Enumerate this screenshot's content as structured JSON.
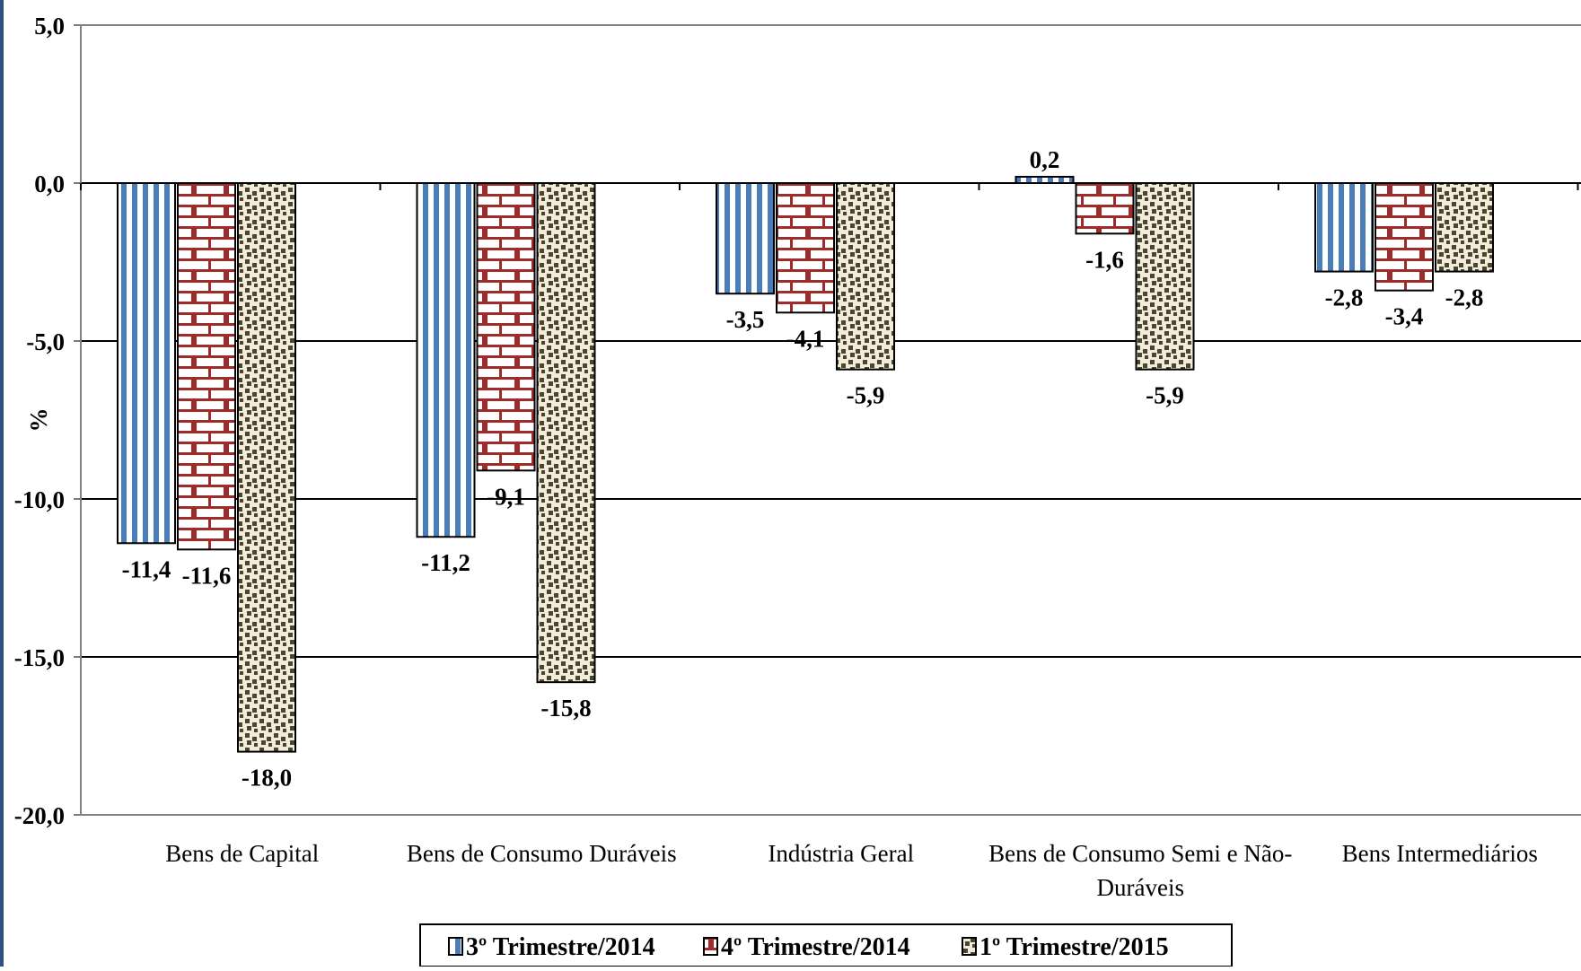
{
  "chart_data": {
    "type": "bar",
    "title": "",
    "xlabel": "",
    "ylabel": "%",
    "ylim": [
      -20,
      5
    ],
    "y_ticks": [
      "5,0",
      "0,0",
      "-5,0",
      "-10,0",
      "-15,0",
      "-20,0"
    ],
    "y_tick_values": [
      5,
      0,
      -5,
      -10,
      -15,
      -20
    ],
    "grid": "horizontal",
    "legend_position": "bottom",
    "categories": [
      [
        "Bens de Capital"
      ],
      [
        "Bens de Consumo Duráveis"
      ],
      [
        "Indústria Geral"
      ],
      [
        "Bens de Consumo Semi e Não-",
        "Duráveis"
      ],
      [
        "Bens Intermediários"
      ]
    ],
    "series": [
      {
        "name": "3º Trimestre/2014",
        "pattern": "vertical-stripes",
        "color": "#4a7ebb",
        "values": [
          -11.4,
          -11.2,
          -3.5,
          0.2,
          -2.8
        ],
        "labels": [
          "-11,4",
          "-11,2",
          "-3,5",
          "0,2",
          "-2,8"
        ]
      },
      {
        "name": "4º Trimestre/2014",
        "pattern": "bricks",
        "color": "#a02b2b",
        "values": [
          -11.6,
          -9.1,
          -4.1,
          -1.6,
          -3.4
        ],
        "labels": [
          "-11,6",
          "-9,1",
          "-4,1",
          "-1,6",
          "-3,4"
        ]
      },
      {
        "name": "1º Trimestre/2015",
        "pattern": "confetti",
        "color": "#4a4530",
        "values": [
          -18.0,
          -15.8,
          -5.9,
          -5.9,
          -2.8
        ],
        "labels": [
          "-18,0",
          "-15,8",
          "-5,9",
          "-5,9",
          "-2,8"
        ]
      }
    ],
    "colors": {
      "frame": "#2f4f7f",
      "grid": "#000000",
      "axis": "#808080"
    }
  }
}
